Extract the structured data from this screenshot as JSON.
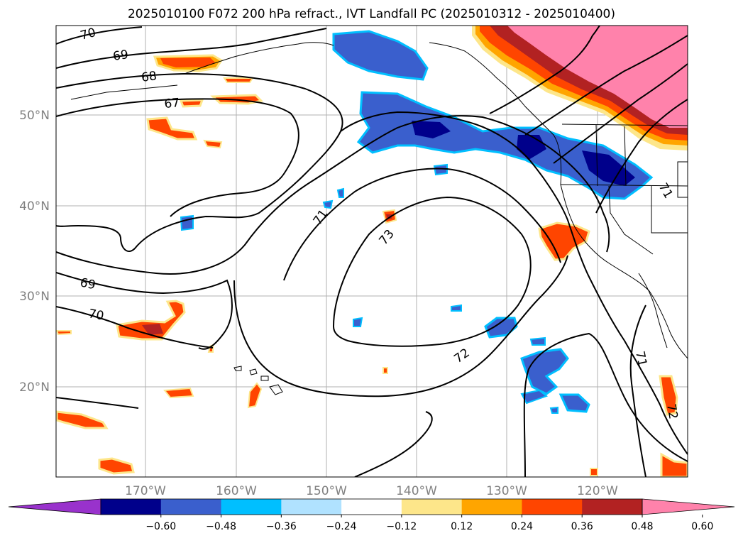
{
  "title": "2025010100 F072 200 hPa refract., IVT Landfall PC (2025010312 - 2025010400)",
  "map": {
    "lat_labels": [
      "50°N",
      "40°N",
      "30°N",
      "20°N"
    ],
    "lon_labels": [
      "170°W",
      "160°W",
      "150°W",
      "140°W",
      "130°W",
      "120°W"
    ],
    "contour_labels": [
      "70",
      "69",
      "68",
      "67",
      "69",
      "70",
      "71",
      "72",
      "73",
      "71",
      "72",
      "71"
    ],
    "grid": true
  },
  "colorbar": {
    "ticks": [
      "−0.60",
      "−0.48",
      "−0.36",
      "−0.24",
      "−0.12",
      "0.12",
      "0.24",
      "0.36",
      "0.48",
      "0.60"
    ],
    "colors": [
      "#9932cc",
      "#00008b",
      "#3a5fcd",
      "#00bfff",
      "#b0e2ff",
      "#ffffff",
      "#fde68a",
      "#ffa500",
      "#ff4500",
      "#b22222",
      "#ff82ab"
    ],
    "extend": "both"
  }
}
